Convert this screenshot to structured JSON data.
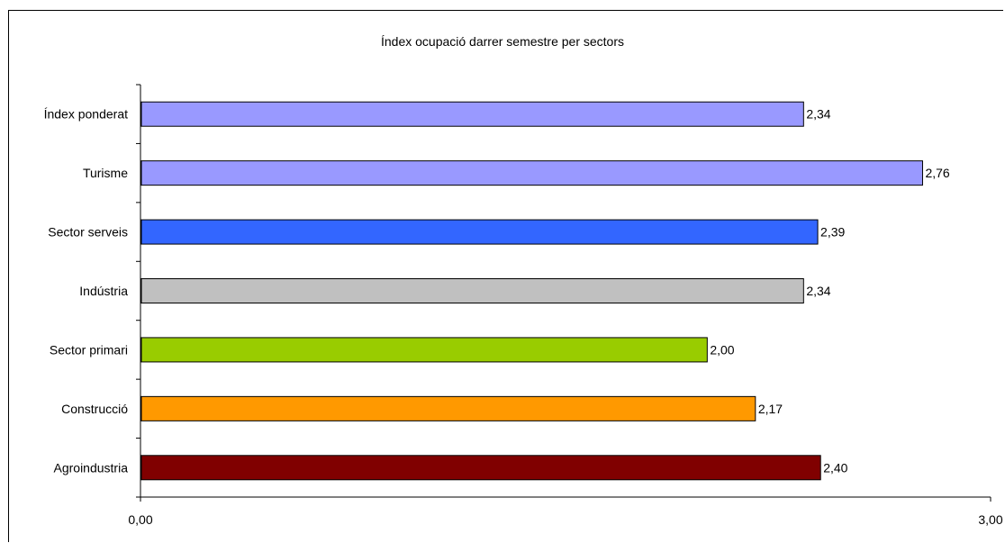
{
  "chart_data": {
    "type": "bar",
    "orientation": "horizontal",
    "title": "Índex ocupació darrer semestre per sectors",
    "categories": [
      "Índex ponderat",
      "Turisme",
      "Sector serveis",
      "Indústria",
      "Sector primari",
      "Construcció",
      "Agroindustria"
    ],
    "values": [
      2.34,
      2.76,
      2.39,
      2.34,
      2.0,
      2.17,
      2.4
    ],
    "value_labels": [
      "2,34",
      "2,76",
      "2,39",
      "2,34",
      "2,00",
      "2,17",
      "2,40"
    ],
    "colors": [
      "#9999ff",
      "#9999ff",
      "#3366ff",
      "#c0c0c0",
      "#99cc00",
      "#ff9900",
      "#800000"
    ],
    "xlim": [
      0,
      3
    ],
    "x_ticks": [
      "0,00",
      "3,00"
    ],
    "xlabel": "",
    "ylabel": "",
    "grid": false,
    "legend": "none"
  }
}
